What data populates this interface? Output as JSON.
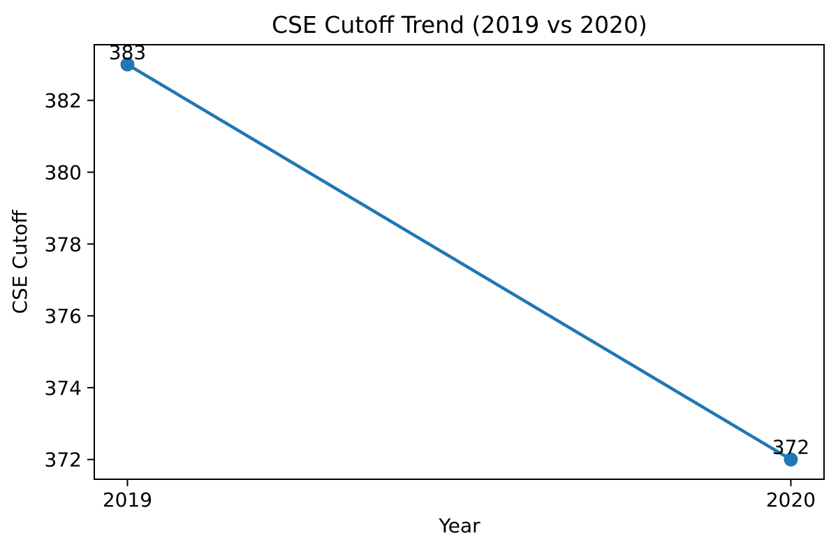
{
  "chart_data": {
    "type": "line",
    "title": "CSE Cutoff Trend (2019 vs 2020)",
    "xlabel": "Year",
    "ylabel": "CSE Cutoff",
    "x": [
      2019,
      2020
    ],
    "series": [
      {
        "name": "CSE Cutoff",
        "values": [
          383,
          372
        ]
      }
    ],
    "point_labels": [
      "383",
      "372"
    ],
    "xticks": [
      2019,
      2020
    ],
    "xtick_labels": [
      "2019",
      "2020"
    ],
    "yticks": [
      372,
      374,
      376,
      378,
      380,
      382
    ],
    "ytick_labels": [
      "372",
      "374",
      "376",
      "378",
      "380",
      "382"
    ],
    "xlim": [
      2018.95,
      2020.05
    ],
    "ylim": [
      371.45,
      383.55
    ],
    "grid": false,
    "legend": "none",
    "line_color": "#1f77b4",
    "marker": "circle",
    "axis_color": "#000000",
    "text_color": "#000000",
    "background_color": "#ffffff"
  }
}
